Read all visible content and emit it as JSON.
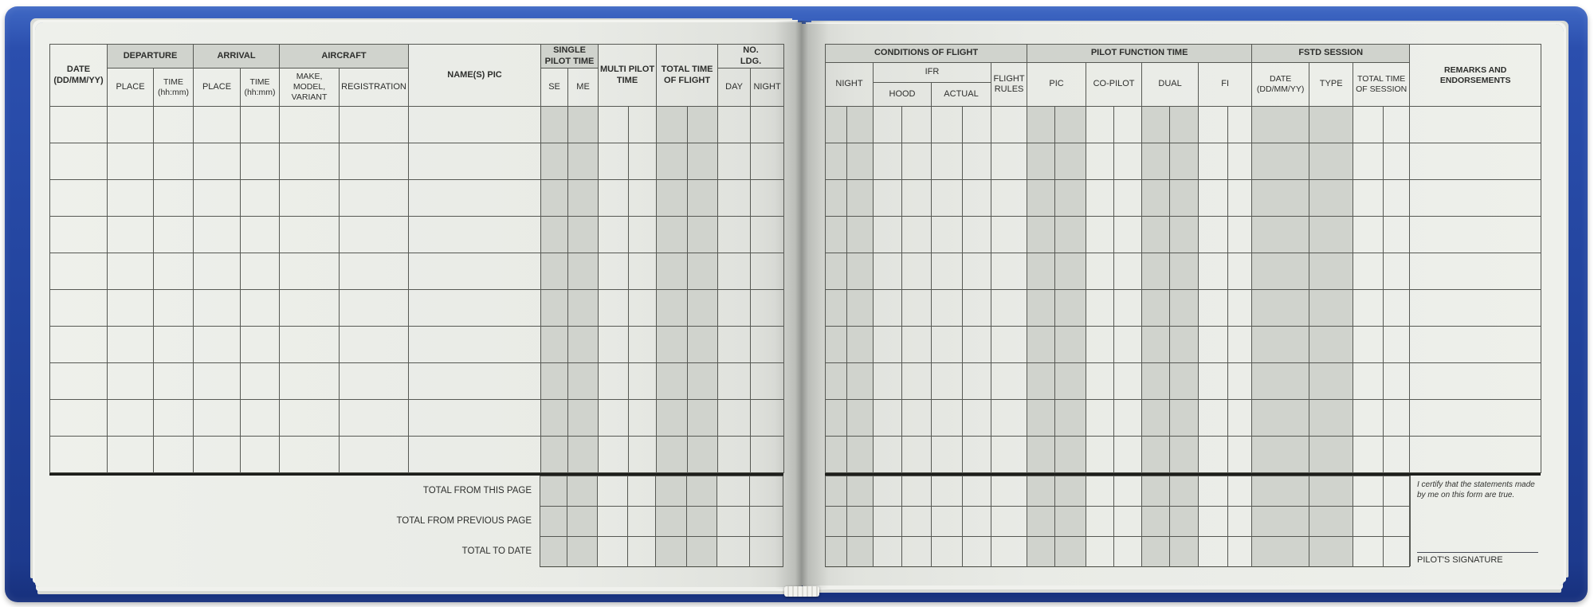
{
  "colors": {
    "cover_blue": "#2b4fae",
    "page": "#e9ebe6",
    "cell_shade": "#d0d3cd",
    "grid_line": "#565853"
  },
  "left_page": {
    "header": {
      "date": "DATE\n(DD/MM/YY)",
      "departure": "DEPARTURE",
      "arrival": "ARRIVAL",
      "aircraft": "AIRCRAFT",
      "dep_place": "PLACE",
      "dep_time": "TIME\n(hh:mm)",
      "arr_place": "PLACE",
      "arr_time": "TIME\n(hh:mm)",
      "make_model_variant": "MAKE,\nMODEL,\nVARIANT",
      "registration": "REGISTRATION",
      "names_pic": "NAME(S) PIC",
      "single_pilot_time": "SINGLE\nPILOT TIME",
      "se": "SE",
      "me": "ME",
      "multi_pilot_time": "MULTI PILOT\nTIME",
      "total_time_of_flight": "TOTAL TIME\nOF FLIGHT",
      "no_ldg": "NO.\nLDG.",
      "day": "DAY",
      "night": "NIGHT"
    },
    "body_rows": 10,
    "totals": {
      "row_labels": [
        "TOTAL FROM THIS PAGE",
        "TOTAL FROM PREVIOUS PAGE",
        "TOTAL TO DATE"
      ]
    }
  },
  "right_page": {
    "header": {
      "conditions_of_flight": "CONDITIONS OF FLIGHT",
      "night": "NIGHT",
      "ifr": "IFR",
      "hood": "HOOD",
      "actual": "ACTUAL",
      "flight_rules": "FLIGHT\nRULES",
      "pilot_function_time": "PILOT FUNCTION TIME",
      "pic": "PIC",
      "co_pilot": "CO-PILOT",
      "dual": "DUAL",
      "fi": "FI",
      "fstd_session": "FSTD SESSION",
      "fstd_date": "DATE\n(DD/MM/YY)",
      "fstd_type": "TYPE",
      "total_time_of_session": "TOTAL TIME\nOF SESSION",
      "remarks": "REMARKS AND ENDORSEMENTS"
    },
    "body_rows": 10,
    "totals_rows": 3,
    "certification": {
      "statement": "I certify that the statements made\nby me on this form are true.",
      "signature_label": "PILOT'S SIGNATURE"
    }
  }
}
